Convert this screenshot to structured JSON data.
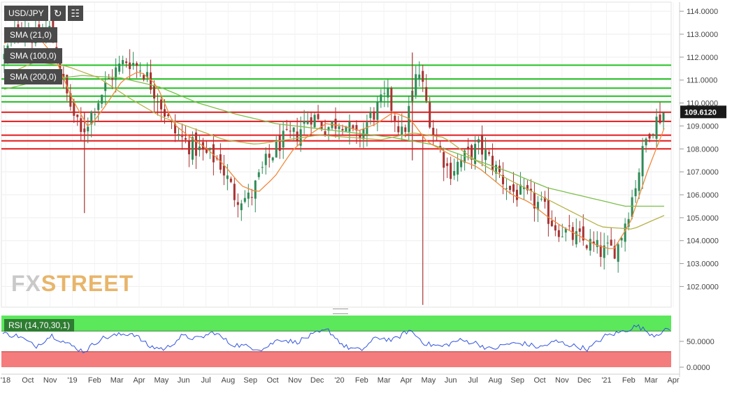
{
  "toolbar": {
    "symbol": "USD/JPY",
    "refresh_icon": "refresh-icon",
    "settings_icon": "chart-settings-icon"
  },
  "indicators": [
    "SMA (21,0)",
    "SMA (100,0)",
    "SMA (200,0)"
  ],
  "rsi_label": "RSI (14,70,30,1)",
  "current_price": "109.6120",
  "watermark": {
    "part1": "FX",
    "part2": "STREET"
  },
  "colors": {
    "up": "#2e8b57",
    "down": "#a83232",
    "sma21": "#f08a3c",
    "sma100": "#b6b24a",
    "sma200": "#7cbf4a",
    "support": "#e31a1c",
    "resistance": "#22c022",
    "rsi_line": "#3355dd",
    "rsi_overbought": "#5be85b",
    "rsi_oversold": "#f47c7c"
  },
  "chart_data": {
    "type": "candlestick",
    "title": "USD/JPY",
    "y_ticks": [
      "114.0000",
      "113.0000",
      "112.0000",
      "111.0000",
      "110.0000",
      "109.0000",
      "108.0000",
      "107.0000",
      "106.0000",
      "105.0000",
      "104.0000",
      "103.0000",
      "102.0000"
    ],
    "ylim": [
      101.1,
      114.4
    ],
    "x_ticks": [
      "'18",
      "Oct",
      "Nov",
      "'19",
      "Feb",
      "Mar",
      "Apr",
      "May",
      "Jun",
      "Jul",
      "Aug",
      "Sep",
      "Oct",
      "Nov",
      "Dec",
      "'20",
      "Feb",
      "Mar",
      "Apr",
      "May",
      "Jun",
      "Jul",
      "Aug",
      "Sep",
      "Oct",
      "Nov",
      "Dec",
      "'21",
      "Feb",
      "Mar",
      "Apr"
    ],
    "horizontal_lines": {
      "resistance_green": [
        111.65,
        111.05,
        110.65,
        110.3,
        110.05
      ],
      "support_red": [
        109.6,
        109.2,
        108.6,
        108.35,
        108.0
      ]
    },
    "close_anchors": [
      112.0,
      113.5,
      112.8,
      113.2,
      110.5,
      108.6,
      110.0,
      111.2,
      111.9,
      111.5,
      110.3,
      108.8,
      108.2,
      107.8,
      107.5,
      106.0,
      105.8,
      107.3,
      108.3,
      108.6,
      109.5,
      108.9,
      109.3,
      108.4,
      109.5,
      110.3,
      108.5,
      111.5,
      108.7,
      107.0,
      107.6,
      108.1,
      107.2,
      106.2,
      105.9,
      105.5,
      104.6,
      104.2,
      103.9,
      103.5,
      103.7,
      106.0,
      108.8,
      109.61
    ],
    "sma21_anchors": [
      112.6,
      113.0,
      112.9,
      112.0,
      110.2,
      108.9,
      109.9,
      111.0,
      111.4,
      110.8,
      109.1,
      108.5,
      108.0,
      107.3,
      106.4,
      106.1,
      106.8,
      107.9,
      108.6,
      109.1,
      109.0,
      108.8,
      109.1,
      109.6,
      109.3,
      108.3,
      107.9,
      107.5,
      107.2,
      106.6,
      106.0,
      105.7,
      105.1,
      104.6,
      104.2,
      103.8,
      103.6,
      104.8,
      107.0,
      108.9
    ],
    "sma100_anchors": [
      111.2,
      111.8,
      111.6,
      111.1,
      110.2,
      109.4,
      108.9,
      108.4,
      108.2,
      108.4,
      108.6,
      108.5,
      108.4,
      108.7,
      108.5,
      107.5,
      106.7,
      106.0,
      105.3,
      104.6,
      104.5,
      105.1
    ],
    "sma200_anchors": [
      110.6,
      111.0,
      111.2,
      111.1,
      110.7,
      110.0,
      109.5,
      109.1,
      108.9,
      108.7,
      108.5,
      108.2,
      107.6,
      107.0,
      106.3,
      105.9,
      105.5,
      105.5
    ],
    "rsi": {
      "y_ticks": [
        "50.0000",
        "0.0000"
      ],
      "ylim": [
        0,
        100
      ],
      "overbought": 70,
      "oversold": 30,
      "anchors": [
        65,
        60,
        40,
        62,
        45,
        30,
        55,
        62,
        66,
        40,
        35,
        60,
        55,
        68,
        45,
        40,
        35,
        55,
        48,
        62,
        72,
        40,
        32,
        58,
        52,
        72,
        45,
        40,
        52,
        48,
        34,
        45,
        46,
        38,
        50,
        42,
        35,
        60,
        68,
        80,
        62,
        74
      ]
    }
  }
}
